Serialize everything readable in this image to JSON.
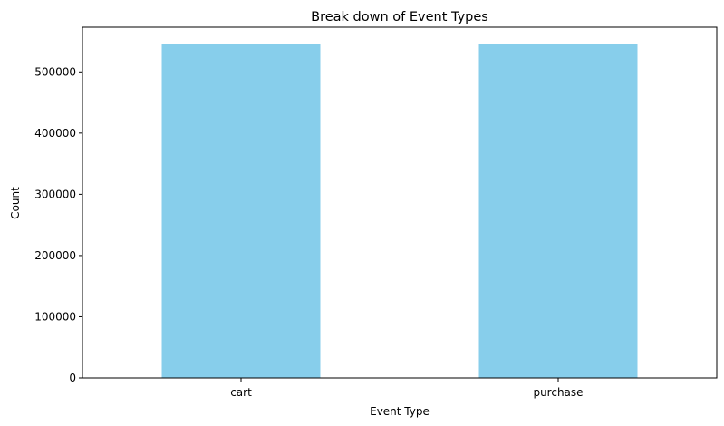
{
  "chart_data": {
    "type": "bar",
    "title": "Break down of Event Types",
    "xlabel": "Event Type",
    "ylabel": "Count",
    "categories": [
      "cart",
      "purchase"
    ],
    "values": [
      546000,
      546000
    ],
    "ylim": [
      0,
      573000
    ],
    "yticks": [
      0,
      100000,
      200000,
      300000,
      400000,
      500000
    ],
    "ytick_labels": [
      "0",
      "100000",
      "200000",
      "300000",
      "400000",
      "500000"
    ],
    "bar_color": "#87ceeb",
    "grid": false,
    "legend": "none"
  }
}
